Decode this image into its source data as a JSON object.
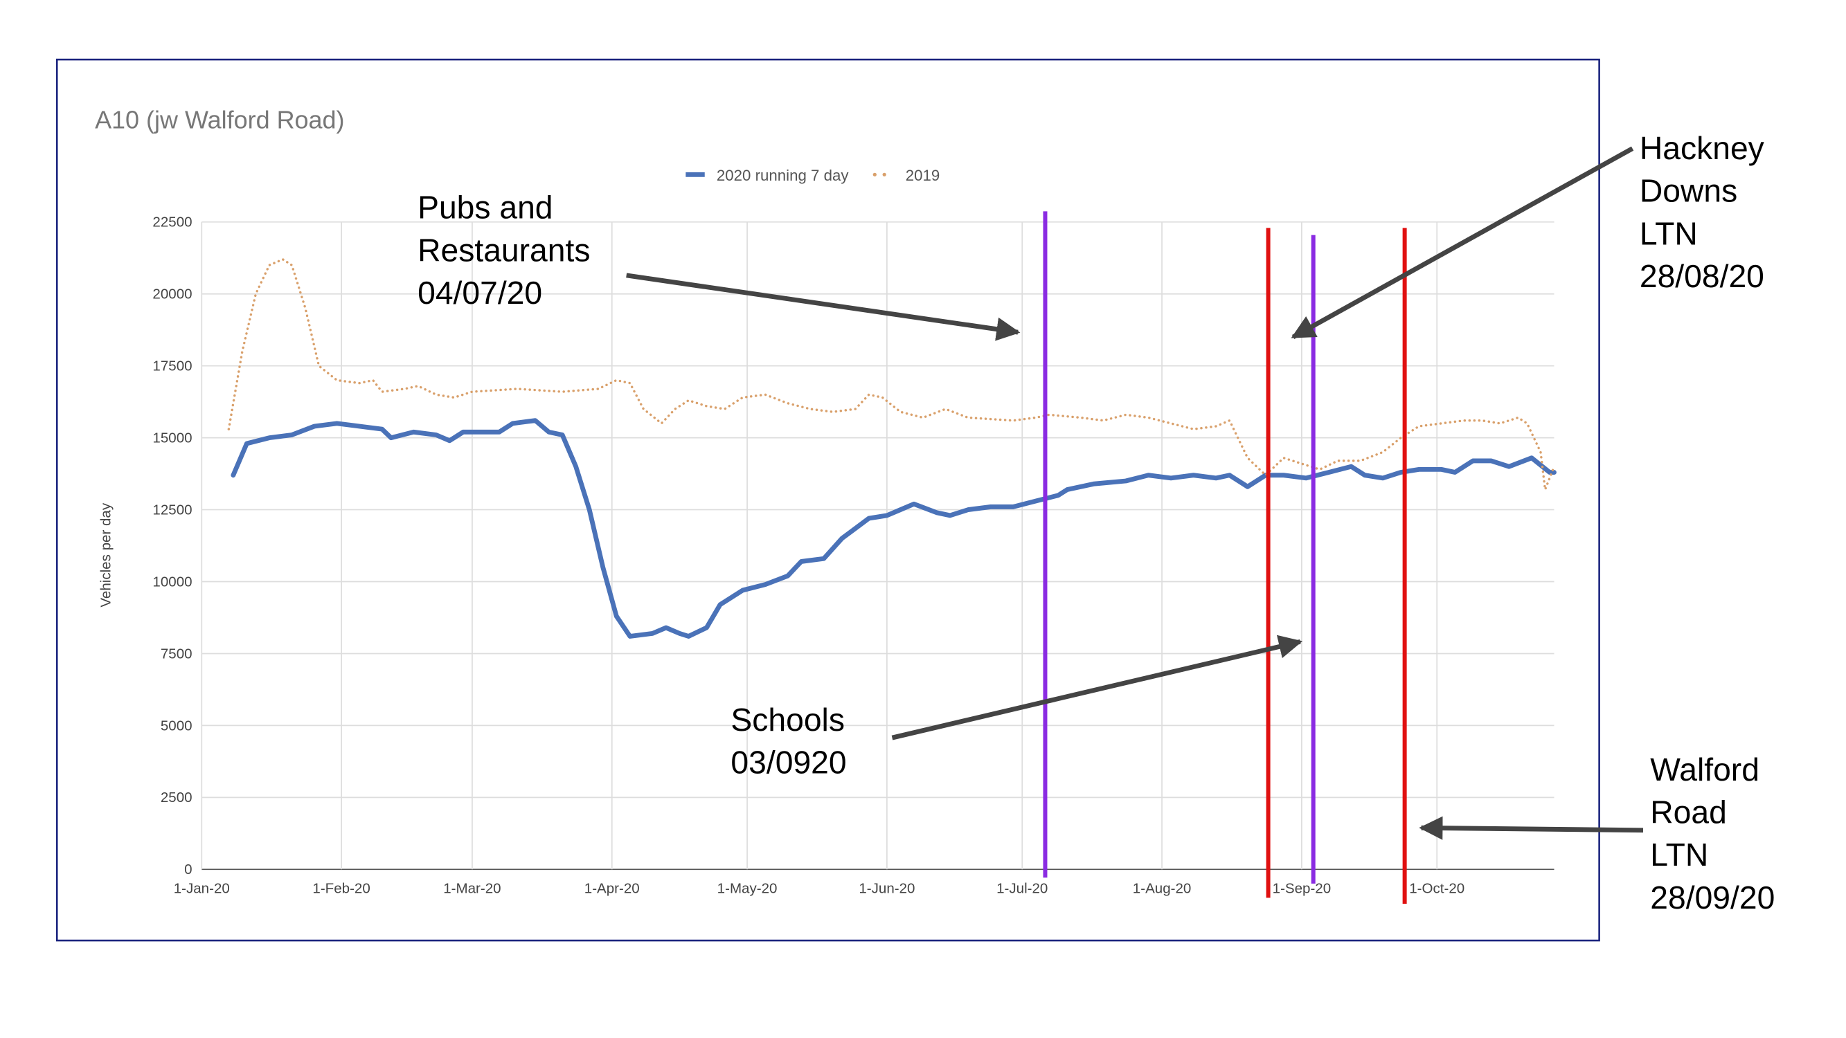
{
  "chart_data": {
    "type": "line",
    "title": "A10 (jw Walford Road)",
    "ylabel": "Vehicles per day",
    "xlim": [
      0,
      300
    ],
    "ylim": [
      0,
      22500
    ],
    "xticks": [
      {
        "value": 0,
        "label": "1-Jan-20"
      },
      {
        "value": 31,
        "label": "1-Feb-20"
      },
      {
        "value": 60,
        "label": "1-Mar-20"
      },
      {
        "value": 91,
        "label": "1-Apr-20"
      },
      {
        "value": 121,
        "label": "1-May-20"
      },
      {
        "value": 152,
        "label": "1-Jun-20"
      },
      {
        "value": 182,
        "label": "1-Jul-20"
      },
      {
        "value": 213,
        "label": "1-Aug-20"
      },
      {
        "value": 244,
        "label": "1-Sep-20"
      },
      {
        "value": 274,
        "label": "1-Oct-20"
      }
    ],
    "yticks": [
      0,
      2500,
      5000,
      7500,
      10000,
      12500,
      15000,
      17500,
      20000,
      22500
    ],
    "grid": true,
    "series": [
      {
        "name": "2020 running 7 day",
        "color": "#4a72b8",
        "style": "solid",
        "x": [
          7,
          10,
          15,
          20,
          25,
          30,
          35,
          40,
          42,
          47,
          52,
          55,
          58,
          63,
          66,
          69,
          74,
          77,
          80,
          83,
          86,
          89,
          92,
          95,
          100,
          103,
          106,
          108,
          112,
          115,
          120,
          125,
          130,
          133,
          138,
          142,
          148,
          152,
          155,
          158,
          163,
          166,
          170,
          175,
          180,
          185,
          190,
          192,
          198,
          205,
          210,
          215,
          220,
          225,
          228,
          232,
          236,
          240,
          245,
          250,
          255,
          258,
          262,
          266,
          270,
          275,
          278,
          282,
          286,
          290,
          295,
          299,
          300
        ],
        "values": [
          13700,
          14800,
          15000,
          15100,
          15400,
          15500,
          15400,
          15300,
          15000,
          15200,
          15100,
          14900,
          15200,
          15200,
          15200,
          15500,
          15600,
          15200,
          15100,
          14000,
          12500,
          10500,
          8800,
          8100,
          8200,
          8400,
          8200,
          8100,
          8400,
          9200,
          9700,
          9900,
          10200,
          10700,
          10800,
          11500,
          12200,
          12300,
          12500,
          12700,
          12400,
          12300,
          12500,
          12600,
          12600,
          12800,
          13000,
          13200,
          13400,
          13500,
          13700,
          13600,
          13700,
          13600,
          13700,
          13300,
          13700,
          13700,
          13600,
          13800,
          14000,
          13700,
          13600,
          13800,
          13900,
          13900,
          13800,
          14200,
          14200,
          14000,
          14300,
          13800,
          13800
        ]
      },
      {
        "name": "2019",
        "color": "#d9a06b",
        "style": "dotted",
        "x": [
          6,
          9,
          12,
          15,
          18,
          20,
          23,
          26,
          30,
          35,
          38,
          40,
          45,
          48,
          52,
          56,
          60,
          70,
          80,
          88,
          92,
          95,
          98,
          102,
          105,
          108,
          112,
          116,
          120,
          125,
          130,
          135,
          140,
          145,
          148,
          151,
          155,
          160,
          165,
          170,
          180,
          185,
          188,
          195,
          200,
          205,
          210,
          215,
          220,
          225,
          228,
          232,
          236,
          240,
          244,
          248,
          252,
          257,
          262,
          266,
          270,
          275,
          280,
          284,
          288,
          292,
          294,
          297,
          298,
          300
        ],
        "values": [
          15300,
          18000,
          20000,
          21000,
          21200,
          21000,
          19500,
          17500,
          17000,
          16900,
          17000,
          16600,
          16700,
          16800,
          16500,
          16400,
          16600,
          16700,
          16600,
          16700,
          17000,
          16900,
          16000,
          15500,
          16000,
          16300,
          16100,
          16000,
          16400,
          16500,
          16200,
          16000,
          15900,
          16000,
          16500,
          16400,
          15900,
          15700,
          16000,
          15700,
          15600,
          15700,
          15800,
          15700,
          15600,
          15800,
          15700,
          15500,
          15300,
          15400,
          15600,
          14300,
          13700,
          14300,
          14100,
          13900,
          14200,
          14200,
          14500,
          15000,
          15400,
          15500,
          15600,
          15600,
          15500,
          15700,
          15500,
          14500,
          13200,
          14000
        ]
      }
    ],
    "annotations": [
      {
        "lines": [
          "Pubs and",
          "Restaurants",
          "04/07/20"
        ]
      },
      {
        "lines": [
          "Hackney",
          "Downs",
          "LTN",
          "28/08/20"
        ]
      },
      {
        "lines": [
          "Schools",
          "03/0920"
        ]
      },
      {
        "lines": [
          "Walford",
          "Road",
          "LTN",
          "28/09/20"
        ]
      }
    ]
  }
}
